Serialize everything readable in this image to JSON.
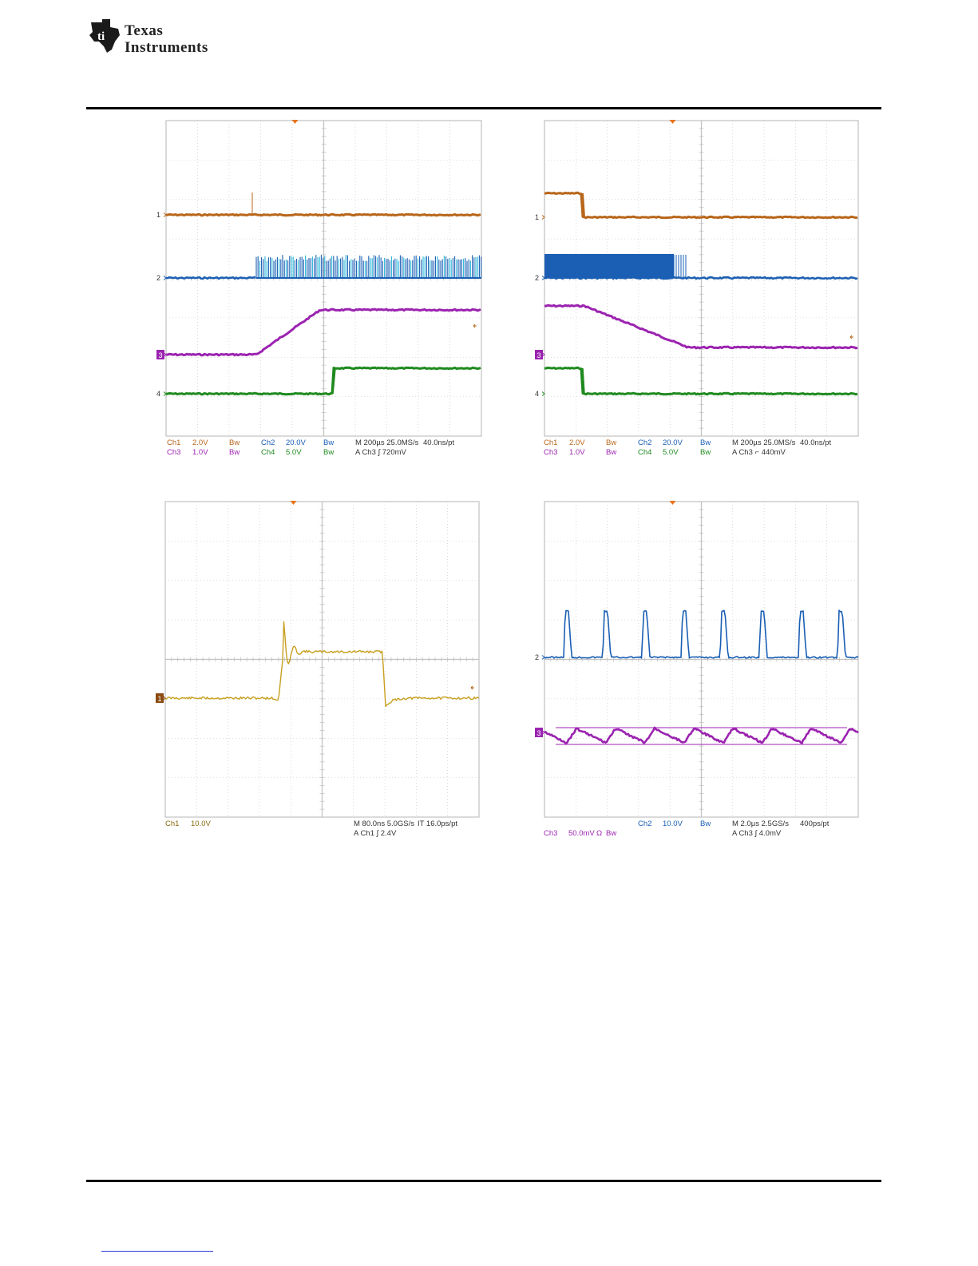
{
  "header": {
    "logo_line1": "Texas",
    "logo_line2": "Instruments",
    "brand_color": "#c8102e"
  },
  "colors": {
    "ch1": "#b8661a",
    "ch1_yellow": "#c8a020",
    "ch2": "#1a5fb4",
    "ch2_light": "#29b6d8",
    "ch3": "#9b23b0",
    "ch4": "#1f8a1f",
    "grid": "#c0c0c0",
    "trigger": "#e8731a"
  },
  "scopes": [
    {
      "id": "scope-1",
      "markers": [
        "1",
        "2",
        "3",
        "4"
      ],
      "readout_row1": [
        "Ch1",
        "2.0V",
        "Bw",
        "Ch2",
        "20.0V",
        "Bw",
        "M 200µs 25.0MS/s",
        "40.0ns/pt"
      ],
      "readout_row2": [
        "Ch3",
        "1.0V",
        "Bw",
        "Ch4",
        "5.0V",
        "Bw",
        "A  Ch3  ∫  720mV"
      ]
    },
    {
      "id": "scope-2",
      "markers": [
        "1",
        "2",
        "3",
        "4"
      ],
      "readout_row1": [
        "Ch1",
        "2.0V",
        "Bw",
        "Ch2",
        "20.0V",
        "Bw",
        "M 200µs 25.0MS/s",
        "40.0ns/pt"
      ],
      "readout_row2": [
        "Ch3",
        "1.0V",
        "Bw",
        "Ch4",
        "5.0V",
        "Bw",
        "A  Ch3  ⌐  440mV"
      ]
    },
    {
      "id": "scope-3",
      "markers": [
        "1"
      ],
      "readout_row1": [
        "Ch1",
        "10.0V",
        "M 80.0ns 5.0GS/s",
        "IT 16.0ps/pt"
      ],
      "readout_row2": [
        "A  Ch1  ∫  2.4V"
      ]
    },
    {
      "id": "scope-4",
      "markers": [
        "2",
        "3"
      ],
      "readout_row1": [
        "Ch2",
        "10.0V",
        "Bw",
        "M 2.0µs 2.5GS/s",
        "400ps/pt"
      ],
      "readout_row2": [
        "Ch3",
        "50.0mV",
        "Ω",
        "Bw",
        "A  Ch3  ∫  4.0mV"
      ]
    }
  ]
}
